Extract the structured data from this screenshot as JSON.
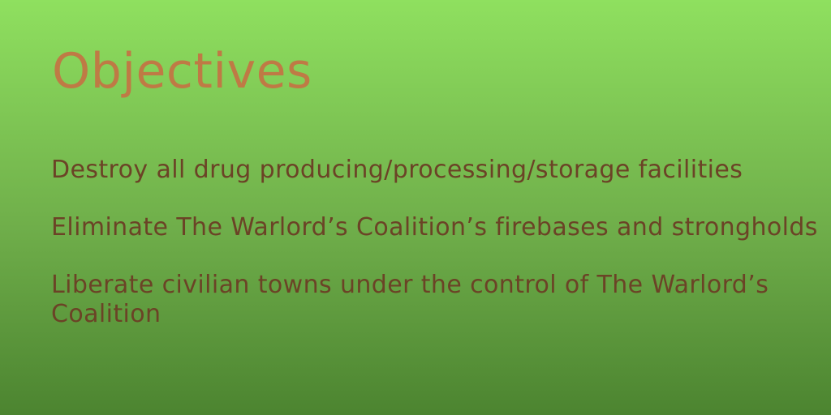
{
  "slide": {
    "title": "Objectives",
    "objectives": [
      "Destroy all drug producing/processing/storage facilities",
      "Eliminate The Warlord’s Coalition’s firebases and strongholds",
      "Liberate civilian towns under the control of The Warlord’s Coalition"
    ]
  },
  "colors": {
    "background_top": "#8fe05f",
    "background_bottom": "#4c8430",
    "title": "#bf7a45",
    "text": "#6b4326"
  }
}
